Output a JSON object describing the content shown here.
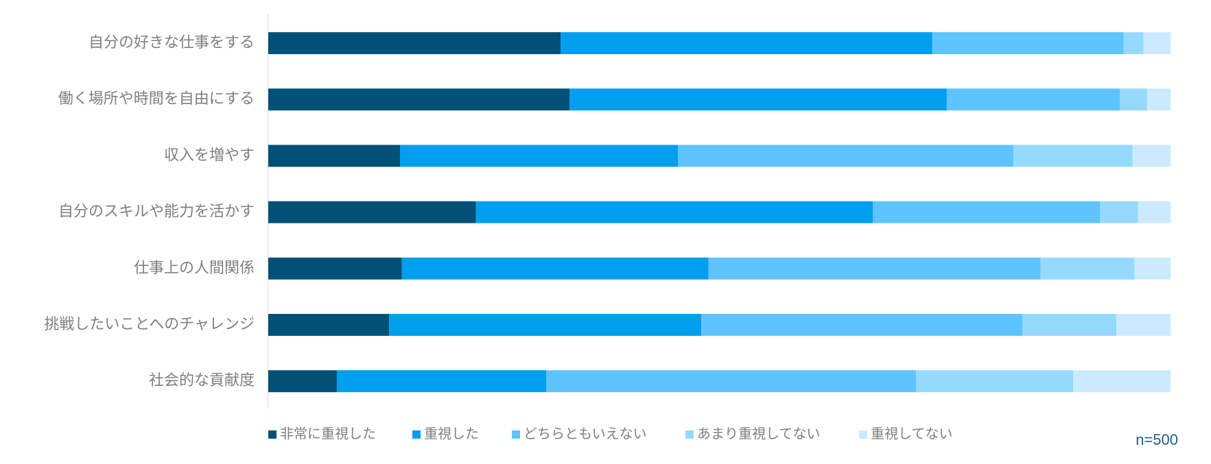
{
  "chart_data": {
    "type": "bar",
    "orientation": "horizontal",
    "stacked": "100%",
    "categories": [
      "自分の好きな仕事をする",
      "働く場所や時間を自由にする",
      "収入を増やす",
      "自分のスキルや能力を活かす",
      "仕事上の人間関係",
      "挑戦したいことへのチャレンジ",
      "社会的な貢献度"
    ],
    "series": [
      {
        "name": "非常に重視した",
        "color": "#005078",
        "values": [
          32.4,
          33.4,
          14.6,
          23.0,
          14.8,
          13.4,
          7.6
        ]
      },
      {
        "name": "重視した",
        "color": "#009eef",
        "values": [
          41.2,
          41.8,
          30.8,
          44.0,
          34.0,
          34.6,
          23.2
        ]
      },
      {
        "name": "どちらともいえない",
        "color": "#5ec4ff",
        "values": [
          21.2,
          19.2,
          37.2,
          25.2,
          36.8,
          35.6,
          41.0
        ]
      },
      {
        "name": "あまり重視してない",
        "color": "#96d9ff",
        "values": [
          2.2,
          3.0,
          13.2,
          4.2,
          10.4,
          10.4,
          17.4
        ]
      },
      {
        "name": "重視してない",
        "color": "#cceaff",
        "values": [
          3.0,
          2.6,
          4.2,
          3.6,
          4.0,
          6.0,
          10.8
        ]
      }
    ],
    "xlim": [
      0,
      100
    ],
    "grid": false,
    "legend_position": "bottom",
    "note": "n=500"
  }
}
